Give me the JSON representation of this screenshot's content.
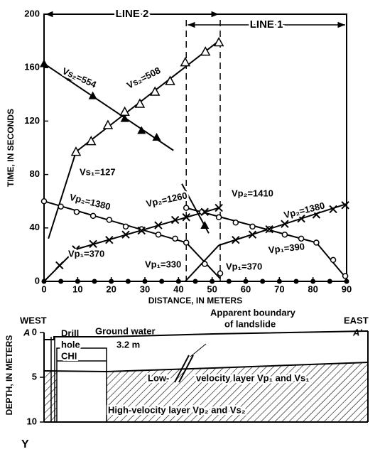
{
  "chart_data": [
    {
      "type": "traveltime",
      "xlabel": "DISTANCE, IN METERS",
      "ylabel": "TIME, IN SECONDS",
      "xlim": [
        0,
        90
      ],
      "ylim": [
        0,
        200
      ],
      "xticks": [
        0,
        10,
        20,
        30,
        40,
        50,
        60,
        70,
        80,
        90
      ],
      "yticks": [
        0,
        40,
        80,
        120,
        160,
        200
      ],
      "line_labels": [
        "LINE 2",
        "LINE 1"
      ],
      "dashed_x": [
        42.3,
        52.4
      ],
      "color": "#000000",
      "series": [
        {
          "marker": "triangle-filled",
          "x": [
            0,
            8,
            14.5,
            24,
            29,
            33.5
          ],
          "values": [
            163,
            153,
            139,
            122,
            113,
            108
          ]
        },
        {
          "marker": "triangle-open",
          "x": [
            9.5,
            14,
            19,
            24,
            28.5,
            33,
            37.5,
            42,
            48,
            52
          ],
          "values": [
            97,
            105,
            117,
            127,
            133,
            142,
            150,
            164,
            172,
            179
          ]
        },
        {
          "marker": "circle-open",
          "x": [
            0,
            5,
            9.7,
            14.6,
            19.4,
            24.3,
            29,
            34,
            39,
            42.3
          ],
          "values": [
            60,
            56,
            52,
            49,
            46,
            41,
            39,
            35,
            32,
            29
          ]
        },
        {
          "marker": "circle-open",
          "x": [
            47.8,
            52.4
          ],
          "values": [
            13,
            6
          ]
        },
        {
          "marker": "circle-open",
          "x": [
            42.3,
            47,
            52,
            57,
            62,
            67,
            71.6,
            76.5,
            81,
            86,
            89.6
          ],
          "values": [
            55,
            52,
            48,
            44,
            41,
            39,
            35,
            32,
            29,
            16,
            4
          ]
        },
        {
          "marker": "x",
          "x": [
            4.6,
            9.5,
            14.6,
            19.4,
            24.3,
            29,
            34,
            39,
            42.3,
            47.8,
            52
          ],
          "values": [
            12,
            24,
            28,
            31,
            35,
            38,
            42,
            46,
            48,
            52,
            55
          ]
        },
        {
          "marker": "x",
          "x": [
            57,
            62,
            67,
            71.6,
            76.5,
            81,
            86,
            89.6
          ],
          "values": [
            31,
            35,
            39,
            43,
            47,
            50,
            54,
            57
          ]
        },
        {
          "marker": "triangle-filled",
          "x": [
            47.8
          ],
          "values": [
            42
          ]
        },
        {
          "marker": "dot",
          "x": [
            0,
            5,
            10,
            15,
            20,
            25,
            30,
            35,
            40,
            45,
            50,
            55,
            60,
            65,
            70,
            75,
            80,
            85,
            90
          ],
          "values": [
            0,
            0,
            0,
            0,
            0,
            0,
            0,
            0,
            0,
            0,
            0,
            0,
            0,
            0,
            0,
            0,
            0,
            0,
            0
          ]
        }
      ],
      "fit_lines": [
        {
          "x": [
            0,
            38.5
          ],
          "values": [
            163,
            98
          ]
        },
        {
          "x": [
            1.3,
            9.5
          ],
          "values": [
            32,
            97
          ]
        },
        {
          "x": [
            9.5,
            52
          ],
          "values": [
            97,
            180
          ]
        },
        {
          "x": [
            0,
            9.5
          ],
          "values": [
            0,
            24
          ]
        },
        {
          "x": [
            9.5,
            52
          ],
          "values": [
            24,
            55
          ]
        },
        {
          "x": [
            0,
            42.3
          ],
          "values": [
            60,
            29
          ]
        },
        {
          "x": [
            42.3,
            52.4
          ],
          "values": [
            29,
            2
          ]
        },
        {
          "x": [
            42,
            52
          ],
          "values": [
            0,
            27
          ]
        },
        {
          "x": [
            52,
            90
          ],
          "values": [
            27,
            58
          ]
        },
        {
          "x": [
            42.3,
            81
          ],
          "values": [
            55,
            29
          ]
        },
        {
          "x": [
            81,
            90
          ],
          "values": [
            29,
            2
          ]
        },
        {
          "x": [
            41,
            49
          ],
          "values": [
            73,
            36
          ]
        }
      ],
      "annotations": [
        "Vs₂=554",
        "Vs₂=508",
        "Vs₁=127",
        "Vp₂=1380",
        "Vp₂=1260",
        "Vp₂=1410",
        "Vp₂=1380",
        "Vp₁=370",
        "Vp₁=330",
        "Vp₁=370",
        "Vp₁=390"
      ]
    },
    {
      "type": "section",
      "ylabel": "DEPTH, IN METERS",
      "ylim": [
        0,
        10
      ],
      "yticks": [
        0,
        5,
        10
      ],
      "west": "WEST",
      "west_mark": "A",
      "east": "EAST",
      "east_mark": "A'",
      "drill_hole": [
        "Drill",
        "hole",
        "CHI"
      ],
      "ground_water": "Ground water",
      "water_depth": "3.2 m",
      "boundary": [
        "Apparent boundary",
        "of landslide"
      ],
      "low_layer": [
        "Low-",
        "velocity layer Vp₁ and Vs₁"
      ],
      "high_layer": "High-velocity layer Vp₂ and Vs₂"
    }
  ],
  "figure_mark": "Y"
}
